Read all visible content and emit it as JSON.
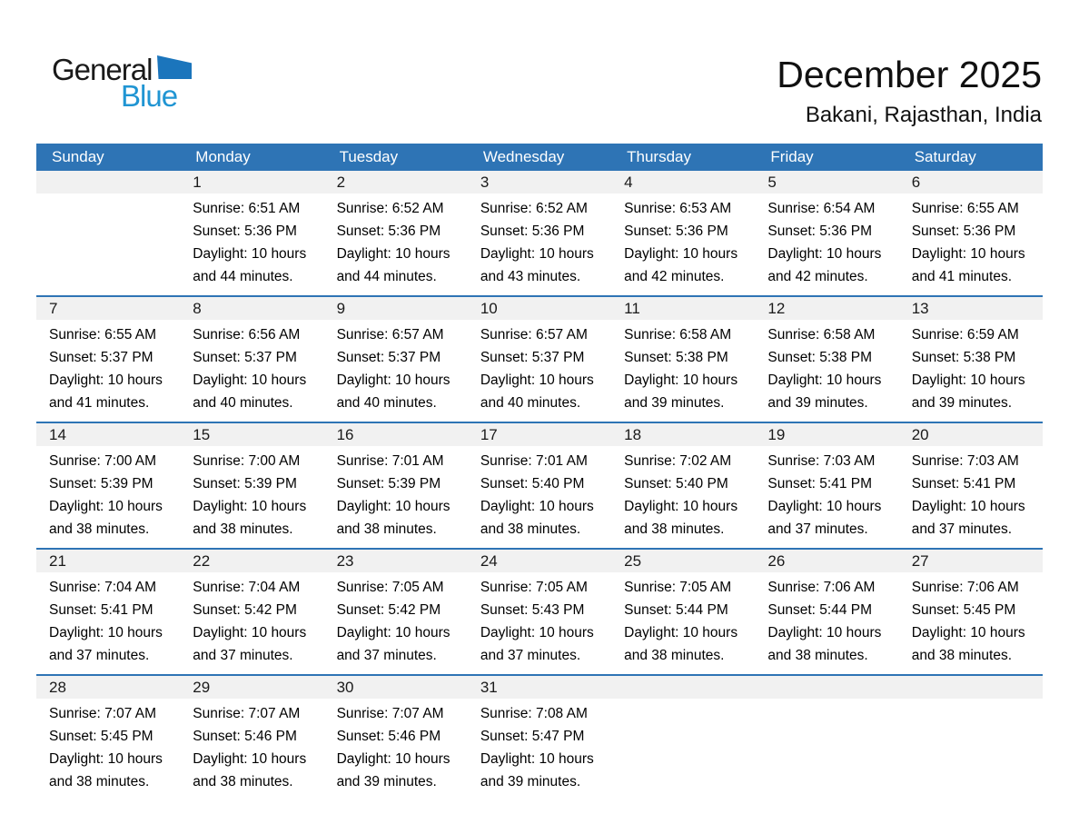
{
  "logo": {
    "general": "General",
    "blue": "Blue"
  },
  "header": {
    "title": "December 2025",
    "subtitle": "Bakani, Rajasthan, India"
  },
  "colors": {
    "header_blue": "#2E74B5",
    "band_gray": "#F1F1F1",
    "logo_triangle": "#1B75BC",
    "logo_blue_text": "#2095D3"
  },
  "calendar": {
    "weekdays": [
      "Sunday",
      "Monday",
      "Tuesday",
      "Wednesday",
      "Thursday",
      "Friday",
      "Saturday"
    ],
    "weeks": [
      {
        "cells": [
          {
            "day": "",
            "sunrise": "",
            "sunset": "",
            "daylight1": "",
            "daylight2": ""
          },
          {
            "day": "1",
            "sunrise": "Sunrise: 6:51 AM",
            "sunset": "Sunset: 5:36 PM",
            "daylight1": "Daylight: 10 hours",
            "daylight2": "and 44 minutes."
          },
          {
            "day": "2",
            "sunrise": "Sunrise: 6:52 AM",
            "sunset": "Sunset: 5:36 PM",
            "daylight1": "Daylight: 10 hours",
            "daylight2": "and 44 minutes."
          },
          {
            "day": "3",
            "sunrise": "Sunrise: 6:52 AM",
            "sunset": "Sunset: 5:36 PM",
            "daylight1": "Daylight: 10 hours",
            "daylight2": "and 43 minutes."
          },
          {
            "day": "4",
            "sunrise": "Sunrise: 6:53 AM",
            "sunset": "Sunset: 5:36 PM",
            "daylight1": "Daylight: 10 hours",
            "daylight2": "and 42 minutes."
          },
          {
            "day": "5",
            "sunrise": "Sunrise: 6:54 AM",
            "sunset": "Sunset: 5:36 PM",
            "daylight1": "Daylight: 10 hours",
            "daylight2": "and 42 minutes."
          },
          {
            "day": "6",
            "sunrise": "Sunrise: 6:55 AM",
            "sunset": "Sunset: 5:36 PM",
            "daylight1": "Daylight: 10 hours",
            "daylight2": "and 41 minutes."
          }
        ]
      },
      {
        "cells": [
          {
            "day": "7",
            "sunrise": "Sunrise: 6:55 AM",
            "sunset": "Sunset: 5:37 PM",
            "daylight1": "Daylight: 10 hours",
            "daylight2": "and 41 minutes."
          },
          {
            "day": "8",
            "sunrise": "Sunrise: 6:56 AM",
            "sunset": "Sunset: 5:37 PM",
            "daylight1": "Daylight: 10 hours",
            "daylight2": "and 40 minutes."
          },
          {
            "day": "9",
            "sunrise": "Sunrise: 6:57 AM",
            "sunset": "Sunset: 5:37 PM",
            "daylight1": "Daylight: 10 hours",
            "daylight2": "and 40 minutes."
          },
          {
            "day": "10",
            "sunrise": "Sunrise: 6:57 AM",
            "sunset": "Sunset: 5:37 PM",
            "daylight1": "Daylight: 10 hours",
            "daylight2": "and 40 minutes."
          },
          {
            "day": "11",
            "sunrise": "Sunrise: 6:58 AM",
            "sunset": "Sunset: 5:38 PM",
            "daylight1": "Daylight: 10 hours",
            "daylight2": "and 39 minutes."
          },
          {
            "day": "12",
            "sunrise": "Sunrise: 6:58 AM",
            "sunset": "Sunset: 5:38 PM",
            "daylight1": "Daylight: 10 hours",
            "daylight2": "and 39 minutes."
          },
          {
            "day": "13",
            "sunrise": "Sunrise: 6:59 AM",
            "sunset": "Sunset: 5:38 PM",
            "daylight1": "Daylight: 10 hours",
            "daylight2": "and 39 minutes."
          }
        ]
      },
      {
        "cells": [
          {
            "day": "14",
            "sunrise": "Sunrise: 7:00 AM",
            "sunset": "Sunset: 5:39 PM",
            "daylight1": "Daylight: 10 hours",
            "daylight2": "and 38 minutes."
          },
          {
            "day": "15",
            "sunrise": "Sunrise: 7:00 AM",
            "sunset": "Sunset: 5:39 PM",
            "daylight1": "Daylight: 10 hours",
            "daylight2": "and 38 minutes."
          },
          {
            "day": "16",
            "sunrise": "Sunrise: 7:01 AM",
            "sunset": "Sunset: 5:39 PM",
            "daylight1": "Daylight: 10 hours",
            "daylight2": "and 38 minutes."
          },
          {
            "day": "17",
            "sunrise": "Sunrise: 7:01 AM",
            "sunset": "Sunset: 5:40 PM",
            "daylight1": "Daylight: 10 hours",
            "daylight2": "and 38 minutes."
          },
          {
            "day": "18",
            "sunrise": "Sunrise: 7:02 AM",
            "sunset": "Sunset: 5:40 PM",
            "daylight1": "Daylight: 10 hours",
            "daylight2": "and 38 minutes."
          },
          {
            "day": "19",
            "sunrise": "Sunrise: 7:03 AM",
            "sunset": "Sunset: 5:41 PM",
            "daylight1": "Daylight: 10 hours",
            "daylight2": "and 37 minutes."
          },
          {
            "day": "20",
            "sunrise": "Sunrise: 7:03 AM",
            "sunset": "Sunset: 5:41 PM",
            "daylight1": "Daylight: 10 hours",
            "daylight2": "and 37 minutes."
          }
        ]
      },
      {
        "cells": [
          {
            "day": "21",
            "sunrise": "Sunrise: 7:04 AM",
            "sunset": "Sunset: 5:41 PM",
            "daylight1": "Daylight: 10 hours",
            "daylight2": "and 37 minutes."
          },
          {
            "day": "22",
            "sunrise": "Sunrise: 7:04 AM",
            "sunset": "Sunset: 5:42 PM",
            "daylight1": "Daylight: 10 hours",
            "daylight2": "and 37 minutes."
          },
          {
            "day": "23",
            "sunrise": "Sunrise: 7:05 AM",
            "sunset": "Sunset: 5:42 PM",
            "daylight1": "Daylight: 10 hours",
            "daylight2": "and 37 minutes."
          },
          {
            "day": "24",
            "sunrise": "Sunrise: 7:05 AM",
            "sunset": "Sunset: 5:43 PM",
            "daylight1": "Daylight: 10 hours",
            "daylight2": "and 37 minutes."
          },
          {
            "day": "25",
            "sunrise": "Sunrise: 7:05 AM",
            "sunset": "Sunset: 5:44 PM",
            "daylight1": "Daylight: 10 hours",
            "daylight2": "and 38 minutes."
          },
          {
            "day": "26",
            "sunrise": "Sunrise: 7:06 AM",
            "sunset": "Sunset: 5:44 PM",
            "daylight1": "Daylight: 10 hours",
            "daylight2": "and 38 minutes."
          },
          {
            "day": "27",
            "sunrise": "Sunrise: 7:06 AM",
            "sunset": "Sunset: 5:45 PM",
            "daylight1": "Daylight: 10 hours",
            "daylight2": "and 38 minutes."
          }
        ]
      },
      {
        "cells": [
          {
            "day": "28",
            "sunrise": "Sunrise: 7:07 AM",
            "sunset": "Sunset: 5:45 PM",
            "daylight1": "Daylight: 10 hours",
            "daylight2": "and 38 minutes."
          },
          {
            "day": "29",
            "sunrise": "Sunrise: 7:07 AM",
            "sunset": "Sunset: 5:46 PM",
            "daylight1": "Daylight: 10 hours",
            "daylight2": "and 38 minutes."
          },
          {
            "day": "30",
            "sunrise": "Sunrise: 7:07 AM",
            "sunset": "Sunset: 5:46 PM",
            "daylight1": "Daylight: 10 hours",
            "daylight2": "and 39 minutes."
          },
          {
            "day": "31",
            "sunrise": "Sunrise: 7:08 AM",
            "sunset": "Sunset: 5:47 PM",
            "daylight1": "Daylight: 10 hours",
            "daylight2": "and 39 minutes."
          },
          {
            "day": "",
            "sunrise": "",
            "sunset": "",
            "daylight1": "",
            "daylight2": ""
          },
          {
            "day": "",
            "sunrise": "",
            "sunset": "",
            "daylight1": "",
            "daylight2": ""
          },
          {
            "day": "",
            "sunrise": "",
            "sunset": "",
            "daylight1": "",
            "daylight2": ""
          }
        ]
      }
    ]
  }
}
